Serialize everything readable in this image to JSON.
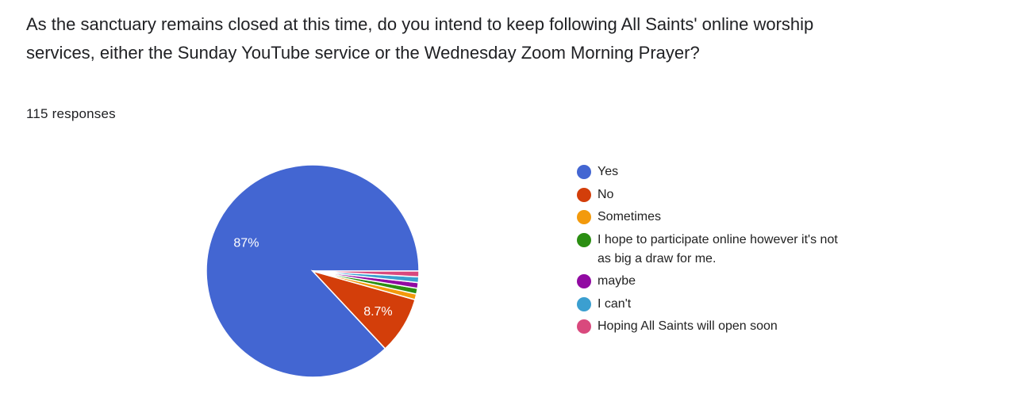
{
  "question": "As the sanctuary remains closed at this time, do you intend to keep following All Saints' online worship services, either the Sunday YouTube service or the Wednesday Zoom Morning Prayer?",
  "responses_label": "115 responses",
  "chart_data": {
    "type": "pie",
    "title": "",
    "categories": [
      "Yes",
      "No",
      "Sometimes",
      "I hope to participate online however it's not as big a draw for me.",
      "maybe",
      "I can't",
      "Hoping All Saints will open soon"
    ],
    "values": [
      100,
      10,
      1,
      1,
      1,
      1,
      1
    ],
    "percent_labels": [
      "87%",
      "8.7%",
      "",
      "",
      "",
      "",
      ""
    ],
    "colors": [
      "#4366d2",
      "#d33e0a",
      "#f39a0c",
      "#2b8e12",
      "#910aa2",
      "#3b9fd0",
      "#d9497d"
    ],
    "legend_position": "right"
  }
}
